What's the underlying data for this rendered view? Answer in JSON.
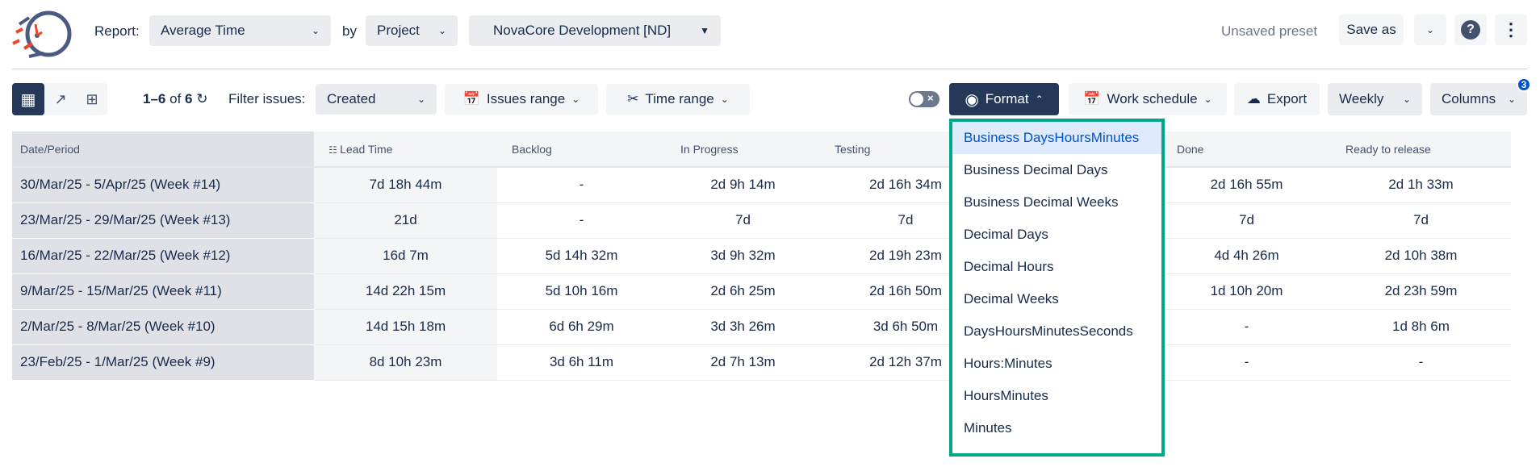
{
  "header": {
    "report_label": "Report:",
    "report_value": "Average Time",
    "by_label": "by",
    "group_value": "Project",
    "project_value": "NovaCore Development [ND]",
    "preset_status": "Unsaved preset",
    "save_as": "Save as"
  },
  "toolbar": {
    "count_range": "1–6",
    "count_of": "of",
    "count_total": "6",
    "filter_label": "Filter issues:",
    "filter_value": "Created",
    "issues_range": "Issues range",
    "time_range": "Time range",
    "format": "Format",
    "work_schedule": "Work schedule",
    "export": "Export",
    "period": "Weekly",
    "columns": "Columns",
    "columns_badge": "3"
  },
  "colors": {
    "accent": "#253858",
    "highlight": "#00a88a",
    "selected": "#0052cc"
  },
  "table": {
    "headers": [
      "Date/Period",
      "Lead Time",
      "Backlog",
      "In Progress",
      "Testing",
      "",
      "Done",
      "Ready to release"
    ],
    "rows": [
      [
        "30/Mar/25 - 5/Apr/25 (Week #14)",
        "7d 18h 44m",
        "-",
        "2d 9h 14m",
        "2d 16h 34m",
        "",
        "2d 16h 55m",
        "2d 1h 33m"
      ],
      [
        "23/Mar/25 - 29/Mar/25 (Week #13)",
        "21d",
        "-",
        "7d",
        "7d",
        "",
        "7d",
        "7d"
      ],
      [
        "16/Mar/25 - 22/Mar/25 (Week #12)",
        "16d 7m",
        "5d 14h 32m",
        "3d 9h 32m",
        "2d 19h 23m",
        "",
        "4d 4h 26m",
        "2d 10h 38m"
      ],
      [
        "9/Mar/25 - 15/Mar/25 (Week #11)",
        "14d 22h 15m",
        "5d 10h 16m",
        "2d 6h 25m",
        "2d 16h 50m",
        "",
        "1d 10h 20m",
        "2d 23h 59m"
      ],
      [
        "2/Mar/25 - 8/Mar/25 (Week #10)",
        "14d 15h 18m",
        "6d 6h 29m",
        "3d 3h 26m",
        "3d 6h 50m",
        "",
        "-",
        "1d 8h 6m"
      ],
      [
        "23/Feb/25 - 1/Mar/25 (Week #9)",
        "8d 10h 23m",
        "3d 6h 11m",
        "2d 7h 13m",
        "2d 12h 37m",
        "",
        "-",
        "-"
      ]
    ]
  },
  "format_menu": {
    "selected": "Business DaysHoursMinutes",
    "items": [
      "Business DaysHoursMinutes",
      "Business Decimal Days",
      "Business Decimal Weeks",
      "Decimal Days",
      "Decimal Hours",
      "Decimal Weeks",
      "DaysHoursMinutesSeconds",
      "Hours:Minutes",
      "HoursMinutes",
      "Minutes"
    ]
  }
}
